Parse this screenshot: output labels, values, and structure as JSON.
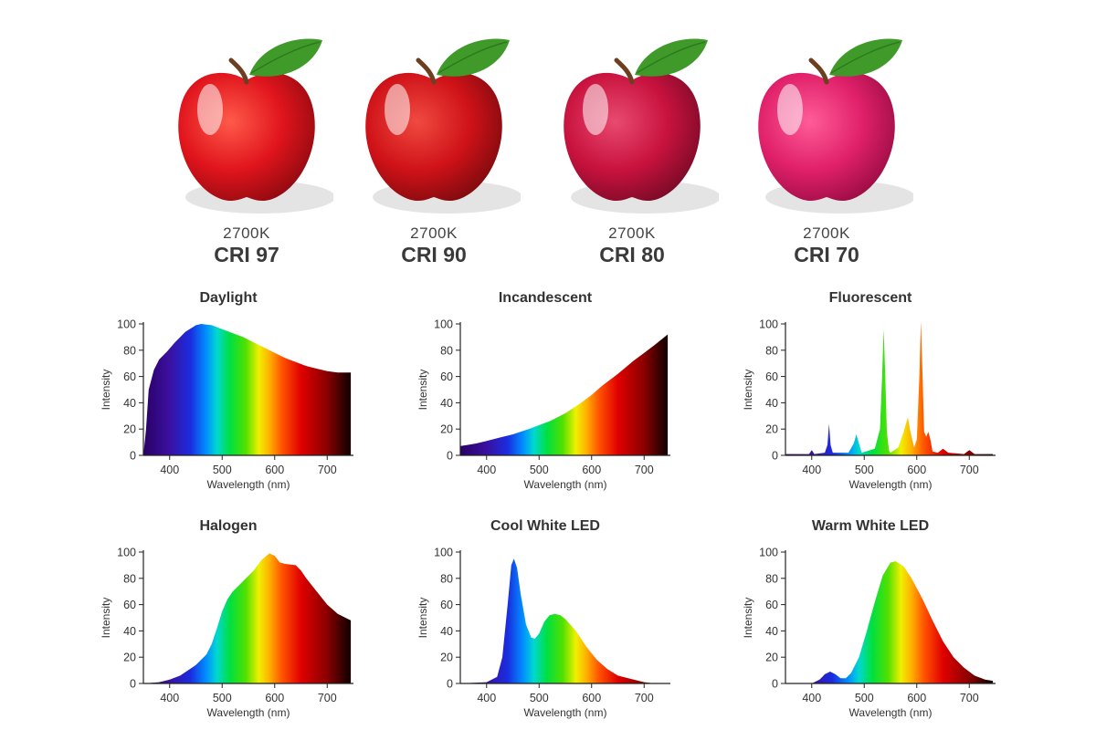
{
  "apples": [
    {
      "cct": "2700K",
      "cri": "CRI 97",
      "color": "#e0141c",
      "highlight": "#ff5a4a",
      "shade": "#8e0a10"
    },
    {
      "cct": "2700K",
      "cri": "CRI 90",
      "color": "#cf1218",
      "highlight": "#f04a40",
      "shade": "#7c0a0e"
    },
    {
      "cct": "2700K",
      "cri": "CRI 80",
      "color": "#c8123e",
      "highlight": "#e84a70",
      "shade": "#780a26"
    },
    {
      "cct": "2700K",
      "cri": "CRI 70",
      "color": "#e0206a",
      "highlight": "#ff5c98",
      "shade": "#9a0c44"
    }
  ],
  "chart_data": [
    {
      "type": "area",
      "title": "Daylight",
      "xlabel": "Wavelength (nm)",
      "ylabel": "Intensity",
      "xlim": [
        350,
        750
      ],
      "ylim": [
        0,
        100
      ],
      "xticks": [
        400,
        500,
        600,
        700
      ],
      "yticks": [
        0,
        20,
        40,
        60,
        80,
        100
      ],
      "x": [
        350,
        355,
        360,
        370,
        380,
        395,
        410,
        430,
        450,
        460,
        480,
        500,
        520,
        540,
        560,
        580,
        600,
        620,
        640,
        660,
        680,
        700,
        720,
        730,
        745
      ],
      "y": [
        0,
        20,
        50,
        65,
        73,
        79,
        86,
        94,
        99,
        100,
        99,
        96,
        93,
        90,
        86,
        82,
        78,
        74,
        71,
        68,
        66,
        64,
        63,
        63,
        63
      ]
    },
    {
      "type": "area",
      "title": "Incandescent",
      "xlabel": "Wavelength (nm)",
      "ylabel": "Intensity",
      "xlim": [
        350,
        750
      ],
      "ylim": [
        0,
        100
      ],
      "xticks": [
        400,
        500,
        600,
        700
      ],
      "yticks": [
        0,
        20,
        40,
        60,
        80,
        100
      ],
      "x": [
        350,
        380,
        400,
        420,
        450,
        480,
        500,
        520,
        550,
        580,
        600,
        620,
        650,
        680,
        700,
        720,
        745
      ],
      "y": [
        7,
        9,
        11,
        13,
        16,
        20,
        23,
        26,
        32,
        40,
        46,
        53,
        62,
        72,
        78,
        84,
        92
      ]
    },
    {
      "type": "area",
      "title": "Fluorescent",
      "xlabel": "Wavelength (nm)",
      "ylabel": "Intensity",
      "xlim": [
        350,
        750
      ],
      "ylim": [
        0,
        100
      ],
      "xticks": [
        400,
        500,
        600,
        700
      ],
      "yticks": [
        0,
        20,
        40,
        60,
        80,
        100
      ],
      "x": [
        350,
        395,
        400,
        405,
        425,
        430,
        433,
        436,
        440,
        470,
        480,
        485,
        490,
        495,
        520,
        530,
        534,
        537,
        540,
        543,
        547,
        550,
        565,
        575,
        583,
        588,
        595,
        600,
        605,
        608,
        611,
        614,
        618,
        622,
        626,
        630,
        640,
        650,
        660,
        690,
        700,
        710,
        745
      ],
      "y": [
        1,
        1,
        4,
        1,
        2,
        8,
        24,
        8,
        2,
        2,
        9,
        16,
        9,
        2,
        5,
        20,
        60,
        96,
        60,
        18,
        4,
        2,
        6,
        18,
        29,
        18,
        6,
        12,
        60,
        102,
        60,
        18,
        14,
        18,
        12,
        3,
        2,
        5,
        2,
        1,
        4,
        1,
        1
      ]
    },
    {
      "type": "area",
      "title": "Halogen",
      "xlabel": "Wavelength (nm)",
      "ylabel": "Intensity",
      "xlim": [
        350,
        750
      ],
      "ylim": [
        0,
        100
      ],
      "xticks": [
        400,
        500,
        600,
        700
      ],
      "yticks": [
        0,
        20,
        40,
        60,
        80,
        100
      ],
      "x": [
        350,
        380,
        400,
        420,
        450,
        470,
        480,
        490,
        500,
        510,
        520,
        540,
        560,
        575,
        590,
        600,
        610,
        620,
        640,
        650,
        660,
        680,
        700,
        720,
        745
      ],
      "y": [
        0,
        1,
        3,
        6,
        14,
        22,
        30,
        42,
        55,
        64,
        70,
        78,
        86,
        94,
        99,
        97,
        92,
        91,
        90,
        86,
        80,
        70,
        60,
        53,
        48
      ]
    },
    {
      "type": "area",
      "title": "Cool White LED",
      "xlabel": "Wavelength (nm)",
      "ylabel": "Intensity",
      "xlim": [
        350,
        750
      ],
      "ylim": [
        0,
        100
      ],
      "xticks": [
        400,
        500,
        600,
        700
      ],
      "yticks": [
        0,
        20,
        40,
        60,
        80,
        100
      ],
      "x": [
        350,
        400,
        420,
        430,
        440,
        447,
        452,
        458,
        465,
        475,
        485,
        492,
        500,
        510,
        520,
        530,
        540,
        550,
        570,
        590,
        610,
        630,
        650,
        680,
        700,
        720,
        745
      ],
      "y": [
        0,
        1,
        5,
        20,
        60,
        90,
        95,
        88,
        68,
        45,
        35,
        34,
        38,
        47,
        52,
        53,
        52,
        49,
        40,
        28,
        18,
        11,
        6,
        3,
        1,
        0,
        0
      ]
    },
    {
      "type": "area",
      "title": "Warm White LED",
      "xlabel": "Wavelength (nm)",
      "ylabel": "Intensity",
      "xlim": [
        350,
        750
      ],
      "ylim": [
        0,
        100
      ],
      "xticks": [
        400,
        500,
        600,
        700
      ],
      "yticks": [
        0,
        20,
        40,
        60,
        80,
        100
      ],
      "x": [
        350,
        400,
        415,
        425,
        435,
        445,
        455,
        465,
        475,
        490,
        505,
        520,
        535,
        550,
        560,
        575,
        590,
        610,
        630,
        650,
        670,
        690,
        710,
        730,
        745
      ],
      "y": [
        0,
        0,
        3,
        7,
        9,
        7,
        4,
        4,
        8,
        20,
        40,
        62,
        82,
        92,
        93,
        89,
        80,
        65,
        48,
        32,
        20,
        12,
        6,
        3,
        2
      ]
    }
  ]
}
